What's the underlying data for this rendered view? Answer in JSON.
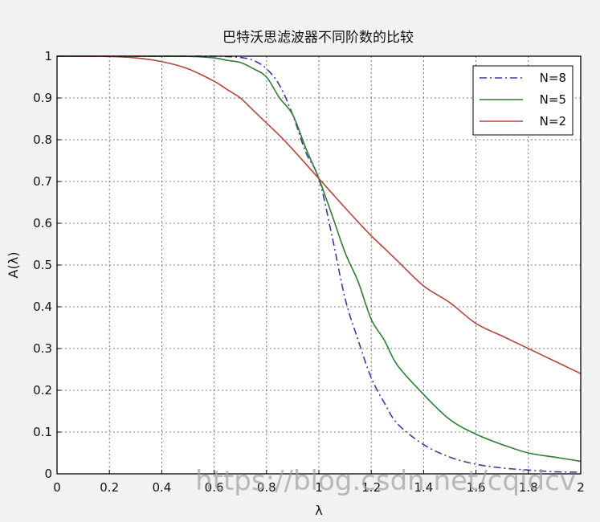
{
  "chart_data": {
    "type": "line",
    "title": "巴特沃思滤波器不同阶数的比较",
    "xlabel": "λ",
    "ylabel": "A(λ)",
    "xlim": [
      0,
      2
    ],
    "ylim": [
      0,
      1
    ],
    "x_ticks": [
      "0",
      "0.2",
      "0.4",
      "0.6",
      "0.8",
      "1",
      "1.2",
      "1.4",
      "1.6",
      "1.8",
      "2"
    ],
    "y_ticks": [
      "0",
      "0.1",
      "0.2",
      "0.3",
      "0.4",
      "0.5",
      "0.6",
      "0.7",
      "0.8",
      "0.9",
      "1"
    ],
    "grid": true,
    "legend_position": "top-right",
    "x": [
      0,
      0.1,
      0.2,
      0.3,
      0.4,
      0.5,
      0.6,
      0.65,
      0.7,
      0.75,
      0.8,
      0.85,
      0.9,
      0.95,
      1.0,
      1.05,
      1.1,
      1.15,
      1.2,
      1.25,
      1.3,
      1.4,
      1.5,
      1.6,
      1.7,
      1.8,
      1.9,
      2.0
    ],
    "series": [
      {
        "name": "N=8",
        "color": "#3a3a9e",
        "dash": "dashdot",
        "values": [
          1,
          1,
          1,
          1,
          1,
          1,
          1,
          0.999,
          0.997,
          0.99,
          0.97,
          0.93,
          0.86,
          0.77,
          0.707,
          0.57,
          0.42,
          0.32,
          0.23,
          0.17,
          0.12,
          0.07,
          0.04,
          0.023,
          0.014,
          0.009,
          0.005,
          0.004
        ]
      },
      {
        "name": "N=5",
        "color": "#2e7d32",
        "dash": "solid",
        "values": [
          1,
          1,
          1,
          1,
          0.9999,
          0.9995,
          0.996,
          0.99,
          0.985,
          0.97,
          0.95,
          0.9,
          0.86,
          0.78,
          0.707,
          0.62,
          0.53,
          0.46,
          0.37,
          0.32,
          0.26,
          0.19,
          0.13,
          0.095,
          0.07,
          0.05,
          0.04,
          0.03
        ]
      },
      {
        "name": "N=2",
        "color": "#b5453b",
        "dash": "solid",
        "values": [
          1,
          0.99995,
          0.9992,
          0.996,
          0.987,
          0.97,
          0.94,
          0.92,
          0.9,
          0.87,
          0.84,
          0.81,
          0.777,
          0.742,
          0.707,
          0.672,
          0.637,
          0.603,
          0.57,
          0.54,
          0.51,
          0.45,
          0.41,
          0.36,
          0.33,
          0.3,
          0.27,
          0.24
        ]
      }
    ]
  },
  "watermark": "https://blog.csdn.net/cqidcv"
}
